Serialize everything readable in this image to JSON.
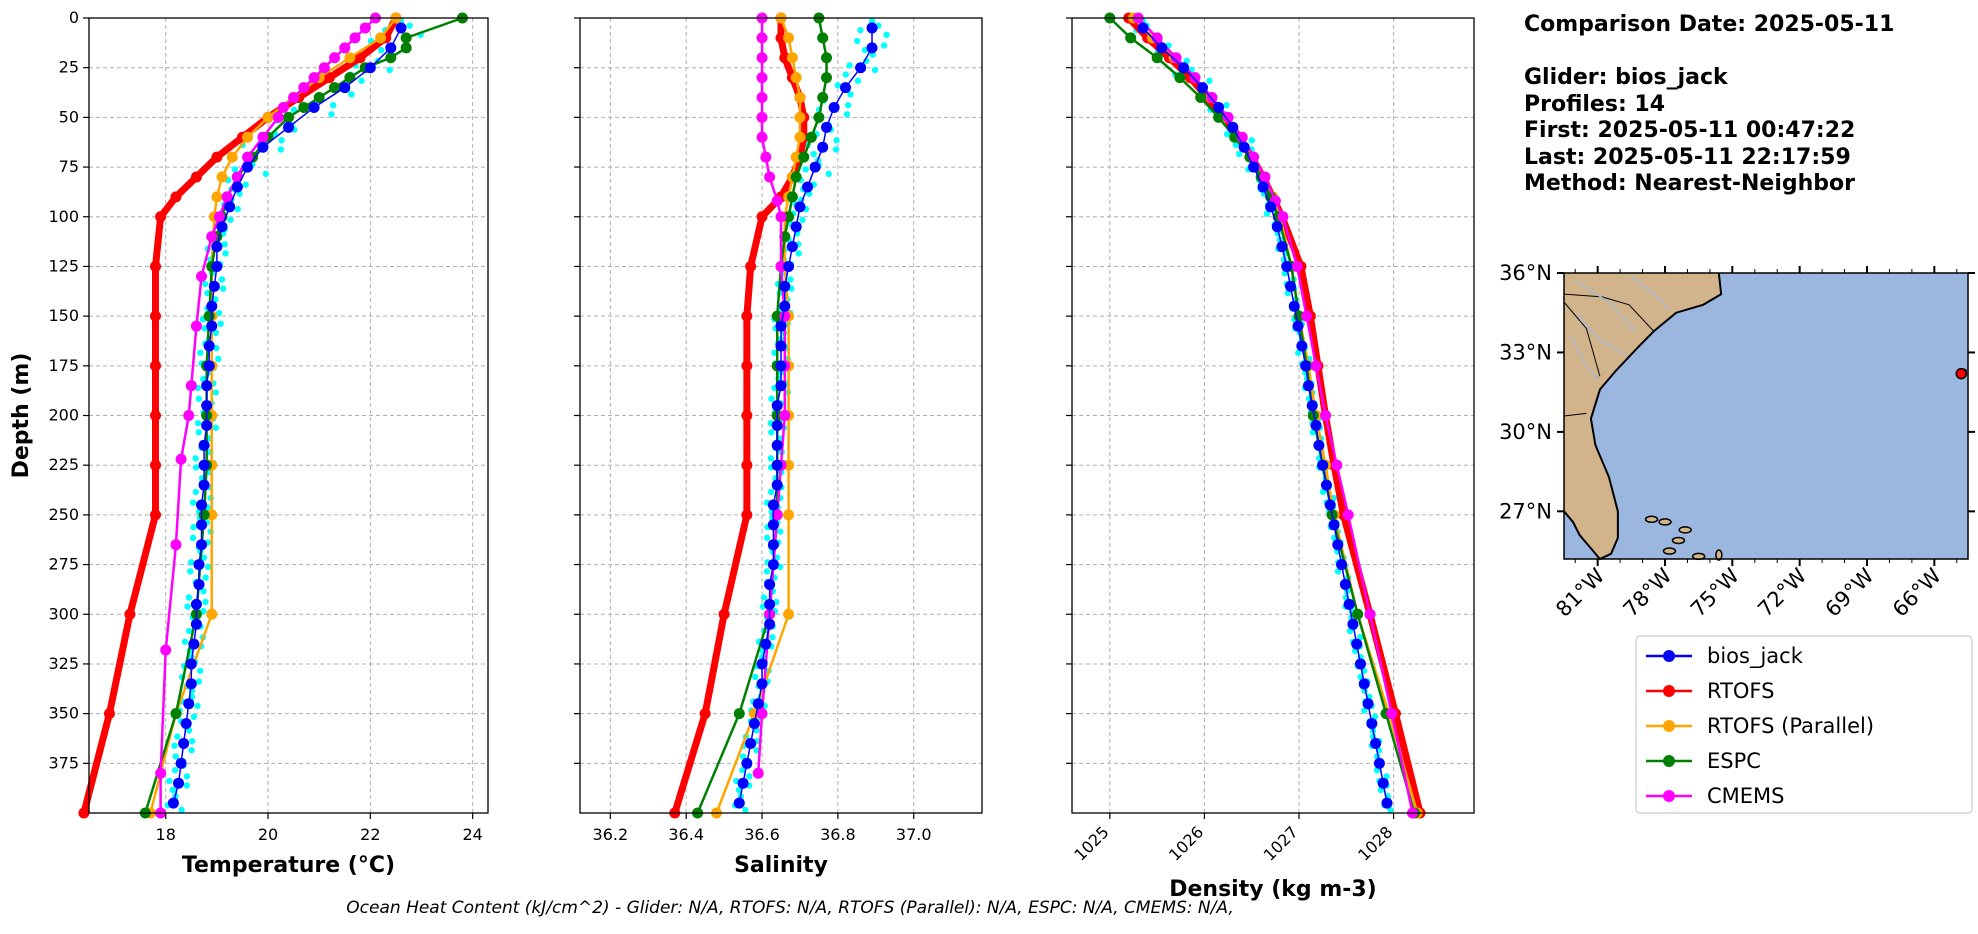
{
  "info": {
    "comparison_date": "Comparison Date: 2025-05-11",
    "glider": "Glider: bios_jack",
    "profiles": "Profiles: 14",
    "first": "First: 2025-05-11 00:47:22",
    "last": "Last: 2025-05-11 22:17:59",
    "method": "Method: Nearest-Neighbor"
  },
  "footer": "Ocean Heat Content (kJ/cm^2) - Glider: N/A,  RTOFS: N/A,  RTOFS (Parallel): N/A,  ESPC: N/A,  CMEMS: N/A,",
  "colors": {
    "bios_jack": "#0000ff",
    "glider_raw": "#00ffff",
    "RTOFS": "#ff0000",
    "RTOFS (Parallel)": "#ffa500",
    "ESPC": "#008000",
    "CMEMS": "#ff00ff",
    "land": "#d2b48c",
    "ocean": "#9bb7e0"
  },
  "legend": [
    "bios_jack",
    "RTOFS",
    "RTOFS (Parallel)",
    "ESPC",
    "CMEMS"
  ],
  "chart_data": [
    {
      "type": "line",
      "xlabel": "Temperature (°C)",
      "ylabel": "Depth (m)",
      "xlim": [
        16.5,
        24.3
      ],
      "ylim": [
        400,
        0
      ],
      "xticks": [
        18,
        20,
        22,
        24
      ],
      "yticks": [
        0,
        25,
        50,
        75,
        100,
        125,
        150,
        175,
        200,
        225,
        250,
        275,
        300,
        325,
        350,
        375
      ],
      "grid": true,
      "series": [
        {
          "name": "bios_jack",
          "depth": [
            5,
            15,
            25,
            35,
            45,
            55,
            65,
            75,
            85,
            95,
            105,
            115,
            125,
            135,
            145,
            155,
            165,
            175,
            185,
            195,
            205,
            215,
            225,
            235,
            245,
            255,
            265,
            275,
            285,
            295,
            305,
            315,
            325,
            335,
            345,
            355,
            365,
            375,
            385,
            395
          ],
          "values": [
            22.6,
            22.4,
            22.0,
            21.5,
            20.9,
            20.4,
            19.9,
            19.6,
            19.4,
            19.25,
            19.1,
            19.0,
            19.0,
            18.95,
            18.9,
            18.9,
            18.85,
            18.85,
            18.8,
            18.8,
            18.8,
            18.75,
            18.75,
            18.75,
            18.7,
            18.7,
            18.7,
            18.65,
            18.65,
            18.6,
            18.6,
            18.55,
            18.5,
            18.5,
            18.45,
            18.4,
            18.35,
            18.3,
            18.25,
            18.15
          ]
        },
        {
          "name": "RTOFS",
          "depth": [
            0,
            10,
            20,
            30,
            40,
            50,
            60,
            70,
            80,
            90,
            100,
            125,
            150,
            175,
            200,
            225,
            250,
            300,
            350,
            400
          ],
          "values": [
            22.5,
            22.3,
            21.8,
            21.2,
            20.6,
            20.0,
            19.5,
            19.0,
            18.6,
            18.2,
            17.9,
            17.8,
            17.8,
            17.8,
            17.8,
            17.8,
            17.8,
            17.3,
            16.9,
            16.4
          ]
        },
        {
          "name": "RTOFS (Parallel)",
          "depth": [
            0,
            10,
            20,
            30,
            40,
            50,
            60,
            70,
            80,
            90,
            100,
            125,
            150,
            175,
            200,
            225,
            250,
            300,
            350,
            400
          ],
          "values": [
            22.5,
            22.2,
            21.6,
            21.0,
            20.5,
            20.0,
            19.6,
            19.3,
            19.1,
            19.0,
            18.95,
            18.9,
            18.9,
            18.9,
            18.9,
            18.9,
            18.9,
            18.9,
            18.2,
            17.7
          ]
        },
        {
          "name": "ESPC",
          "depth": [
            0,
            10,
            15,
            20,
            25,
            30,
            35,
            40,
            45,
            50,
            60,
            70,
            80,
            90,
            100,
            110,
            125,
            150,
            175,
            200,
            225,
            250,
            300,
            350,
            400
          ],
          "values": [
            23.8,
            22.7,
            22.7,
            22.4,
            21.9,
            21.6,
            21.3,
            21.0,
            20.7,
            20.4,
            20.0,
            19.7,
            19.4,
            19.2,
            19.1,
            19.0,
            18.9,
            18.85,
            18.8,
            18.8,
            18.8,
            18.75,
            18.6,
            18.2,
            17.6
          ]
        },
        {
          "name": "CMEMS",
          "depth": [
            0,
            5,
            10,
            15,
            20,
            25,
            30,
            35,
            40,
            45,
            50,
            60,
            70,
            80,
            90,
            100,
            110,
            130,
            155,
            185,
            200,
            222,
            265,
            318,
            380,
            400
          ],
          "values": [
            22.1,
            21.9,
            21.7,
            21.5,
            21.3,
            21.1,
            20.9,
            20.7,
            20.5,
            20.3,
            20.2,
            19.9,
            19.6,
            19.4,
            19.2,
            19.05,
            18.9,
            18.7,
            18.6,
            18.5,
            18.45,
            18.3,
            18.2,
            18.0,
            17.9,
            17.9
          ]
        }
      ]
    },
    {
      "type": "line",
      "xlabel": "Salinity",
      "xlim": [
        36.12,
        37.18
      ],
      "ylim": [
        400,
        0
      ],
      "xticks": [
        36.2,
        36.4,
        36.6,
        36.8,
        37.0
      ],
      "grid": true,
      "series": [
        {
          "name": "bios_jack",
          "depth": [
            5,
            15,
            25,
            35,
            45,
            55,
            65,
            75,
            85,
            95,
            105,
            115,
            125,
            135,
            145,
            155,
            165,
            175,
            185,
            195,
            205,
            215,
            225,
            235,
            245,
            255,
            265,
            275,
            285,
            295,
            305,
            315,
            325,
            335,
            345,
            355,
            365,
            375,
            385,
            395
          ],
          "values": [
            36.89,
            36.89,
            36.86,
            36.82,
            36.79,
            36.77,
            36.76,
            36.74,
            36.72,
            36.7,
            36.69,
            36.68,
            36.67,
            36.66,
            36.66,
            36.65,
            36.65,
            36.65,
            36.65,
            36.64,
            36.64,
            36.64,
            36.64,
            36.64,
            36.63,
            36.63,
            36.63,
            36.63,
            36.62,
            36.62,
            36.62,
            36.61,
            36.6,
            36.6,
            36.59,
            36.58,
            36.57,
            36.56,
            36.55,
            36.54
          ]
        },
        {
          "name": "RTOFS",
          "depth": [
            0,
            10,
            20,
            30,
            40,
            50,
            60,
            70,
            80,
            90,
            100,
            125,
            150,
            175,
            200,
            225,
            250,
            300,
            350,
            400
          ],
          "values": [
            36.65,
            36.65,
            36.66,
            36.68,
            36.7,
            36.71,
            36.71,
            36.7,
            36.68,
            36.65,
            36.6,
            36.57,
            36.56,
            36.56,
            36.56,
            36.56,
            36.56,
            36.5,
            36.45,
            36.37
          ]
        },
        {
          "name": "RTOFS (Parallel)",
          "depth": [
            0,
            10,
            20,
            30,
            40,
            50,
            60,
            70,
            80,
            90,
            100,
            125,
            150,
            175,
            200,
            225,
            250,
            300,
            350,
            400
          ],
          "values": [
            36.65,
            36.67,
            36.68,
            36.69,
            36.7,
            36.7,
            36.7,
            36.69,
            36.68,
            36.67,
            36.66,
            36.66,
            36.67,
            36.67,
            36.67,
            36.67,
            36.67,
            36.67,
            36.58,
            36.48
          ]
        },
        {
          "name": "ESPC",
          "depth": [
            0,
            10,
            20,
            30,
            40,
            50,
            60,
            70,
            80,
            90,
            100,
            110,
            125,
            150,
            175,
            200,
            225,
            250,
            300,
            350,
            400
          ],
          "values": [
            36.75,
            36.76,
            36.77,
            36.77,
            36.76,
            36.75,
            36.73,
            36.71,
            36.69,
            36.68,
            36.67,
            36.66,
            36.65,
            36.64,
            36.64,
            36.64,
            36.64,
            36.64,
            36.62,
            36.54,
            36.43
          ]
        },
        {
          "name": "CMEMS",
          "depth": [
            0,
            10,
            20,
            30,
            40,
            50,
            60,
            70,
            80,
            92,
            100,
            125,
            150,
            175,
            200,
            225,
            250,
            300,
            350,
            380
          ],
          "values": [
            36.6,
            36.6,
            36.6,
            36.6,
            36.6,
            36.6,
            36.6,
            36.61,
            36.62,
            36.64,
            36.65,
            36.65,
            36.66,
            36.66,
            36.66,
            36.65,
            36.64,
            36.62,
            36.6,
            36.59
          ]
        }
      ]
    },
    {
      "type": "line",
      "xlabel": "Density (kg m-3)",
      "xlim": [
        1024.6,
        1028.85
      ],
      "ylim": [
        400,
        0
      ],
      "xticks": [
        1025,
        1026,
        1027,
        1028
      ],
      "grid": true,
      "series": [
        {
          "name": "bios_jack",
          "depth": [
            5,
            15,
            25,
            35,
            45,
            55,
            65,
            75,
            85,
            95,
            105,
            115,
            125,
            135,
            145,
            155,
            165,
            175,
            185,
            195,
            205,
            215,
            225,
            235,
            245,
            255,
            265,
            275,
            285,
            295,
            305,
            315,
            325,
            335,
            345,
            355,
            365,
            375,
            385,
            395
          ],
          "values": [
            1025.35,
            1025.55,
            1025.78,
            1025.98,
            1026.15,
            1026.3,
            1026.42,
            1026.52,
            1026.62,
            1026.7,
            1026.77,
            1026.82,
            1026.87,
            1026.91,
            1026.95,
            1026.99,
            1027.03,
            1027.07,
            1027.1,
            1027.14,
            1027.18,
            1027.21,
            1027.25,
            1027.29,
            1027.33,
            1027.37,
            1027.41,
            1027.45,
            1027.49,
            1027.53,
            1027.57,
            1027.61,
            1027.65,
            1027.69,
            1027.73,
            1027.77,
            1027.81,
            1027.85,
            1027.89,
            1027.93
          ]
        },
        {
          "name": "RTOFS",
          "depth": [
            0,
            10,
            20,
            30,
            40,
            50,
            60,
            70,
            80,
            90,
            100,
            125,
            150,
            175,
            200,
            225,
            250,
            300,
            350,
            400
          ],
          "values": [
            1025.2,
            1025.4,
            1025.63,
            1025.85,
            1026.03,
            1026.2,
            1026.36,
            1026.5,
            1026.62,
            1026.72,
            1026.82,
            1027.02,
            1027.12,
            1027.2,
            1027.28,
            1027.37,
            1027.47,
            1027.75,
            1028.02,
            1028.28
          ]
        },
        {
          "name": "RTOFS (Parallel)",
          "depth": [
            0,
            10,
            20,
            30,
            40,
            50,
            60,
            70,
            80,
            90,
            100,
            125,
            150,
            175,
            200,
            225,
            250,
            300,
            350,
            400
          ],
          "values": [
            1025.25,
            1025.45,
            1025.68,
            1025.9,
            1026.07,
            1026.22,
            1026.38,
            1026.52,
            1026.63,
            1026.72,
            1026.8,
            1026.92,
            1027.0,
            1027.1,
            1027.18,
            1027.28,
            1027.37,
            1027.62,
            1027.95,
            1028.25
          ]
        },
        {
          "name": "ESPC",
          "depth": [
            0,
            10,
            20,
            30,
            40,
            50,
            60,
            70,
            80,
            90,
            100,
            125,
            150,
            175,
            200,
            225,
            250,
            300,
            350,
            400
          ],
          "values": [
            1025.0,
            1025.22,
            1025.5,
            1025.74,
            1025.96,
            1026.15,
            1026.32,
            1026.48,
            1026.6,
            1026.7,
            1026.78,
            1026.92,
            1027.0,
            1027.08,
            1027.15,
            1027.25,
            1027.35,
            1027.62,
            1027.92,
            1028.22
          ]
        },
        {
          "name": "CMEMS",
          "depth": [
            0,
            10,
            20,
            30,
            40,
            50,
            60,
            70,
            80,
            92,
            100,
            125,
            150,
            175,
            200,
            225,
            250,
            300,
            350,
            400
          ],
          "values": [
            1025.3,
            1025.5,
            1025.7,
            1025.9,
            1026.08,
            1026.25,
            1026.4,
            1026.52,
            1026.64,
            1026.75,
            1026.83,
            1026.98,
            1027.08,
            1027.18,
            1027.28,
            1027.4,
            1027.52,
            1027.75,
            1027.98,
            1028.2
          ]
        }
      ]
    },
    {
      "type": "map",
      "lon_range": [
        -82.5,
        -64.5
      ],
      "lat_range": [
        25.2,
        36.0
      ],
      "xticks": [
        "81°W",
        "78°W",
        "75°W",
        "72°W",
        "69°W",
        "66°W"
      ],
      "yticks": [
        "36°N",
        "33°N",
        "30°N",
        "27°N"
      ],
      "glider_position": {
        "lon": -64.8,
        "lat": 32.2
      }
    }
  ]
}
